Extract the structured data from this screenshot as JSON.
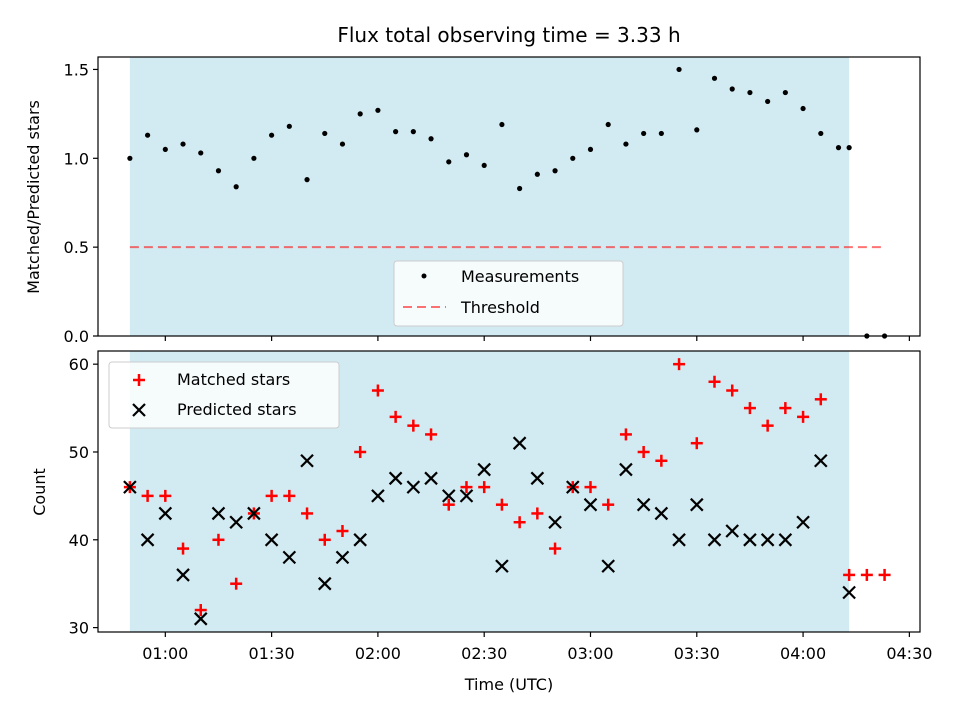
{
  "chart_data": [
    {
      "type": "scatter",
      "title": "Flux total observing time = 3.33 h",
      "xlabel": "",
      "ylabel": "Matched/Predicted stars",
      "ylim": [
        0,
        1.57
      ],
      "yticks": [
        "0.0",
        "0.5",
        "1.0",
        "1.5"
      ],
      "observing_window": [
        "00:50",
        "04:13"
      ],
      "colors": {
        "window": "#add8e6",
        "measurements": "#000000",
        "threshold": "#ff0000"
      },
      "threshold": {
        "name": "Threshold",
        "value": 0.5,
        "x_range": [
          "00:50",
          "04:23"
        ]
      },
      "legend": {
        "placement": "lower center",
        "entries": [
          "Measurements",
          "Threshold"
        ]
      },
      "series": [
        {
          "name": "Measurements",
          "x": [
            "00:50",
            "00:55",
            "01:00",
            "01:05",
            "01:10",
            "01:15",
            "01:20",
            "01:25",
            "01:30",
            "01:35",
            "01:40",
            "01:45",
            "01:50",
            "01:55",
            "02:00",
            "02:05",
            "02:10",
            "02:15",
            "02:20",
            "02:25",
            "02:30",
            "02:35",
            "02:40",
            "02:45",
            "02:50",
            "02:55",
            "03:00",
            "03:05",
            "03:10",
            "03:15",
            "03:20",
            "03:25",
            "03:30",
            "03:35",
            "03:40",
            "03:45",
            "03:50",
            "03:55",
            "04:00",
            "04:05",
            "04:10",
            "04:13",
            "04:18",
            "04:23"
          ],
          "values": [
            1.0,
            1.13,
            1.05,
            1.08,
            1.03,
            0.93,
            0.84,
            1.0,
            1.13,
            1.18,
            0.88,
            1.14,
            1.08,
            1.25,
            1.27,
            1.15,
            1.15,
            1.11,
            0.98,
            1.02,
            0.96,
            1.19,
            0.83,
            0.91,
            0.93,
            1.0,
            1.05,
            1.19,
            1.08,
            1.14,
            1.14,
            1.5,
            1.16,
            1.45,
            1.39,
            1.37,
            1.32,
            1.37,
            1.28,
            1.14,
            1.06,
            1.06,
            0.0,
            0.0
          ]
        }
      ]
    },
    {
      "type": "scatter",
      "title": "",
      "xlabel": "Time (UTC)",
      "ylabel": "Count",
      "ylim": [
        29.5,
        61.5
      ],
      "yticks": [
        "30",
        "40",
        "50",
        "60"
      ],
      "xlim": [
        "00:41",
        "04:33"
      ],
      "xticks": [
        "01:00",
        "01:30",
        "02:00",
        "02:30",
        "03:00",
        "03:30",
        "04:00",
        "04:30"
      ],
      "observing_window": [
        "00:50",
        "04:13"
      ],
      "colors": {
        "window": "#add8e6",
        "matched": "#ff0000",
        "predicted": "#000000"
      },
      "legend": {
        "placement": "top-left",
        "entries": [
          "Matched stars",
          "Predicted stars"
        ]
      },
      "series": [
        {
          "name": "Matched stars",
          "x": [
            "00:50",
            "00:55",
            "01:00",
            "01:05",
            "01:10",
            "01:15",
            "01:20",
            "01:25",
            "01:30",
            "01:35",
            "01:40",
            "01:45",
            "01:50",
            "01:55",
            "02:00",
            "02:05",
            "02:10",
            "02:15",
            "02:20",
            "02:25",
            "02:30",
            "02:35",
            "02:40",
            "02:45",
            "02:50",
            "02:55",
            "03:00",
            "03:05",
            "03:10",
            "03:15",
            "03:20",
            "03:25",
            "03:30",
            "03:35",
            "03:40",
            "03:45",
            "03:50",
            "03:55",
            "04:00",
            "04:05",
            "04:13",
            "04:18",
            "04:23"
          ],
          "values": [
            46,
            45,
            45,
            39,
            32,
            40,
            35,
            43,
            45,
            45,
            43,
            40,
            41,
            50,
            57,
            54,
            53,
            52,
            44,
            46,
            46,
            44,
            42,
            43,
            39,
            46,
            46,
            44,
            52,
            50,
            49,
            60,
            51,
            58,
            57,
            55,
            53,
            55,
            54,
            56,
            36,
            36,
            36
          ]
        },
        {
          "name": "Predicted stars",
          "x": [
            "00:50",
            "00:55",
            "01:00",
            "01:05",
            "01:10",
            "01:15",
            "01:20",
            "01:25",
            "01:30",
            "01:35",
            "01:40",
            "01:45",
            "01:50",
            "01:55",
            "02:00",
            "02:05",
            "02:10",
            "02:15",
            "02:20",
            "02:25",
            "02:30",
            "02:35",
            "02:40",
            "02:45",
            "02:50",
            "02:55",
            "03:00",
            "03:05",
            "03:10",
            "03:15",
            "03:20",
            "03:25",
            "03:30",
            "03:35",
            "03:40",
            "03:45",
            "03:50",
            "03:55",
            "04:00",
            "04:05",
            "04:13"
          ],
          "values": [
            46,
            40,
            43,
            36,
            31,
            43,
            42,
            43,
            40,
            38,
            49,
            35,
            38,
            40,
            45,
            47,
            46,
            47,
            45,
            45,
            48,
            37,
            51,
            47,
            42,
            46,
            44,
            37,
            48,
            44,
            43,
            40,
            44,
            40,
            41,
            40,
            40,
            40,
            42,
            49,
            34
          ]
        }
      ]
    }
  ]
}
